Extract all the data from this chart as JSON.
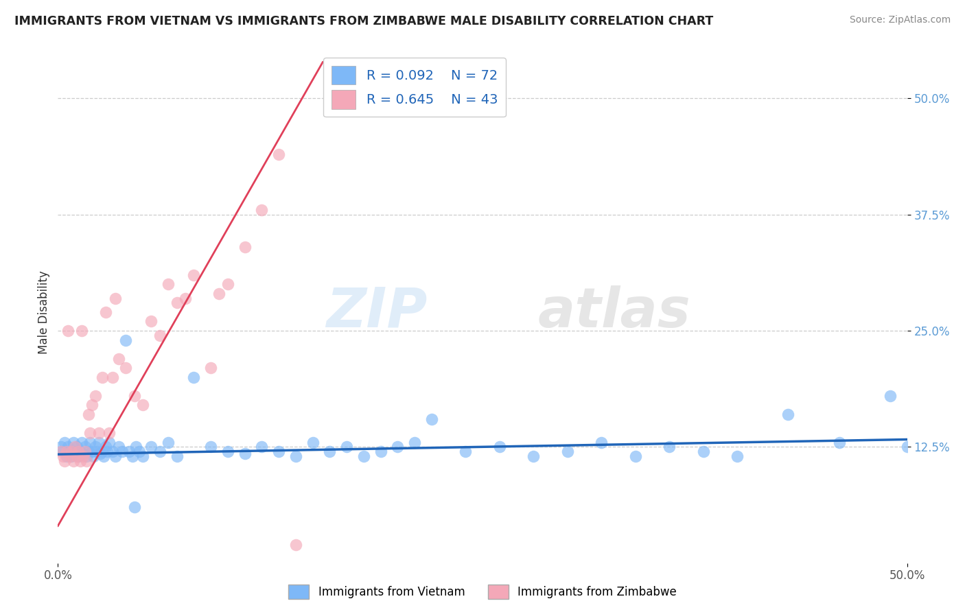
{
  "title": "IMMIGRANTS FROM VIETNAM VS IMMIGRANTS FROM ZIMBABWE MALE DISABILITY CORRELATION CHART",
  "source": "Source: ZipAtlas.com",
  "ylabel": "Male Disability",
  "ytick_labels": [
    "50.0%",
    "37.5%",
    "25.0%",
    "12.5%"
  ],
  "ytick_values": [
    0.5,
    0.375,
    0.25,
    0.125
  ],
  "xlim": [
    0.0,
    0.5
  ],
  "ylim": [
    0.0,
    0.54
  ],
  "legend1_R": "0.092",
  "legend1_N": "72",
  "legend2_R": "0.645",
  "legend2_N": "43",
  "color_vietnam": "#7eb8f7",
  "color_zimbabwe": "#f4a8b8",
  "line_color_vietnam": "#2065b8",
  "line_color_zimbabwe": "#e0405a",
  "watermark_zip": "ZIP",
  "watermark_atlas": "atlas",
  "vietnam_x": [
    0.002,
    0.003,
    0.004,
    0.005,
    0.006,
    0.007,
    0.008,
    0.009,
    0.01,
    0.011,
    0.012,
    0.013,
    0.014,
    0.015,
    0.016,
    0.017,
    0.018,
    0.019,
    0.02,
    0.021,
    0.022,
    0.023,
    0.024,
    0.025,
    0.026,
    0.027,
    0.028,
    0.029,
    0.03,
    0.032,
    0.034,
    0.036,
    0.038,
    0.04,
    0.042,
    0.044,
    0.046,
    0.048,
    0.05,
    0.055,
    0.06,
    0.065,
    0.07,
    0.08,
    0.09,
    0.1,
    0.11,
    0.12,
    0.13,
    0.14,
    0.15,
    0.16,
    0.17,
    0.18,
    0.19,
    0.2,
    0.21,
    0.22,
    0.24,
    0.26,
    0.28,
    0.3,
    0.32,
    0.34,
    0.36,
    0.38,
    0.4,
    0.43,
    0.46,
    0.49,
    0.5,
    0.045
  ],
  "vietnam_y": [
    0.125,
    0.12,
    0.13,
    0.115,
    0.125,
    0.12,
    0.115,
    0.13,
    0.12,
    0.125,
    0.115,
    0.12,
    0.13,
    0.118,
    0.125,
    0.115,
    0.12,
    0.13,
    0.12,
    0.115,
    0.125,
    0.12,
    0.13,
    0.118,
    0.12,
    0.115,
    0.125,
    0.12,
    0.13,
    0.12,
    0.115,
    0.125,
    0.12,
    0.24,
    0.12,
    0.115,
    0.125,
    0.12,
    0.115,
    0.125,
    0.12,
    0.13,
    0.115,
    0.2,
    0.125,
    0.12,
    0.118,
    0.125,
    0.12,
    0.115,
    0.13,
    0.12,
    0.125,
    0.115,
    0.12,
    0.125,
    0.13,
    0.155,
    0.12,
    0.125,
    0.115,
    0.12,
    0.13,
    0.115,
    0.125,
    0.12,
    0.115,
    0.16,
    0.13,
    0.18,
    0.125,
    0.06
  ],
  "zimbabwe_x": [
    0.002,
    0.003,
    0.004,
    0.005,
    0.006,
    0.007,
    0.008,
    0.009,
    0.01,
    0.011,
    0.012,
    0.013,
    0.014,
    0.015,
    0.016,
    0.017,
    0.018,
    0.019,
    0.02,
    0.022,
    0.024,
    0.026,
    0.028,
    0.03,
    0.032,
    0.034,
    0.036,
    0.04,
    0.045,
    0.05,
    0.055,
    0.06,
    0.065,
    0.07,
    0.075,
    0.08,
    0.09,
    0.095,
    0.1,
    0.11,
    0.12,
    0.13,
    0.14
  ],
  "zimbabwe_y": [
    0.12,
    0.115,
    0.11,
    0.12,
    0.25,
    0.115,
    0.12,
    0.11,
    0.125,
    0.115,
    0.12,
    0.11,
    0.25,
    0.115,
    0.12,
    0.11,
    0.16,
    0.14,
    0.17,
    0.18,
    0.14,
    0.2,
    0.27,
    0.14,
    0.2,
    0.285,
    0.22,
    0.21,
    0.18,
    0.17,
    0.26,
    0.245,
    0.3,
    0.28,
    0.285,
    0.31,
    0.21,
    0.29,
    0.3,
    0.34,
    0.38,
    0.44,
    0.02
  ],
  "vn_line_x": [
    0.0,
    0.5
  ],
  "vn_line_y": [
    0.117,
    0.133
  ],
  "zw_line_x_start": 0.0,
  "zw_line_y_start": 0.04,
  "zw_line_slope": 3.2
}
